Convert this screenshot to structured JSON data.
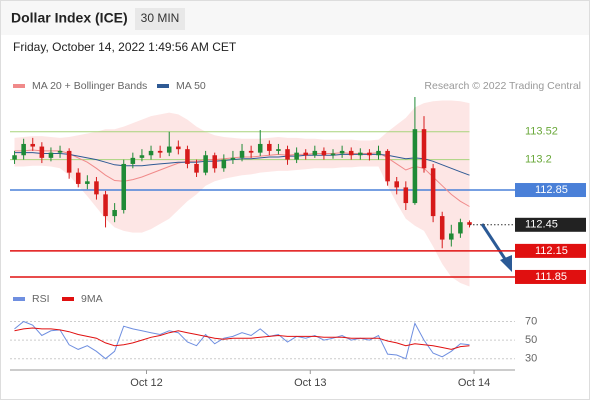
{
  "header": {
    "title": "Dollar Index (ICE)",
    "interval": "30 MIN",
    "timestamp": "Friday, October 14, 2022 1:49:56 AM CET",
    "credit": "Research © 2022 Trading Central"
  },
  "chart_data": [
    {
      "type": "candlestick",
      "up_color": "#1f8a36",
      "down_color": "#d61a1a",
      "open": [
        113.2,
        113.25,
        113.38,
        113.35,
        113.22,
        113.28,
        113.3,
        113.05,
        112.92,
        112.95,
        112.8,
        112.55,
        112.62,
        113.15,
        113.22,
        113.25,
        113.3,
        113.28,
        113.35,
        113.32,
        113.15,
        113.05,
        113.25,
        113.1,
        113.2,
        113.22,
        113.3,
        113.28,
        113.38,
        113.3,
        113.32,
        113.2,
        113.28,
        113.25,
        113.3,
        113.25,
        113.27,
        113.3,
        113.25,
        113.28,
        113.25,
        113.3,
        112.95,
        112.88,
        112.7,
        113.55,
        113.1,
        112.55,
        112.28,
        112.35,
        112.48
      ],
      "high": [
        113.3,
        113.44,
        113.45,
        113.4,
        113.34,
        113.36,
        113.33,
        113.1,
        113.02,
        113.0,
        112.84,
        112.7,
        113.2,
        113.28,
        113.32,
        113.36,
        113.36,
        113.52,
        113.42,
        113.36,
        113.2,
        113.3,
        113.28,
        113.26,
        113.3,
        113.38,
        113.36,
        113.54,
        113.42,
        113.38,
        113.36,
        113.34,
        113.32,
        113.36,
        113.34,
        113.32,
        113.36,
        113.34,
        113.33,
        113.32,
        113.36,
        113.32,
        113.0,
        112.95,
        113.92,
        113.7,
        113.15,
        112.6,
        112.45,
        112.52,
        112.5
      ],
      "low": [
        113.15,
        113.2,
        113.3,
        113.16,
        113.18,
        113.22,
        112.98,
        112.88,
        112.86,
        112.74,
        112.42,
        112.48,
        112.58,
        113.1,
        113.18,
        113.2,
        113.22,
        113.24,
        113.26,
        113.1,
        113.0,
        113.02,
        113.05,
        113.06,
        113.15,
        113.18,
        113.22,
        113.24,
        113.25,
        113.26,
        113.14,
        113.16,
        113.2,
        113.22,
        113.2,
        113.21,
        113.22,
        113.2,
        113.2,
        113.19,
        113.2,
        112.9,
        112.8,
        112.62,
        112.68,
        113.05,
        112.48,
        112.18,
        112.2,
        112.3,
        112.42
      ],
      "close": [
        113.25,
        113.38,
        113.35,
        113.22,
        113.28,
        113.3,
        113.05,
        112.92,
        112.95,
        112.8,
        112.55,
        112.62,
        113.15,
        113.22,
        113.25,
        113.3,
        113.28,
        113.35,
        113.32,
        113.15,
        113.05,
        113.25,
        113.1,
        113.2,
        113.22,
        113.3,
        113.28,
        113.38,
        113.3,
        113.32,
        113.2,
        113.28,
        113.25,
        113.3,
        113.25,
        113.27,
        113.3,
        113.25,
        113.28,
        113.25,
        113.3,
        112.95,
        112.88,
        112.7,
        113.55,
        113.1,
        112.55,
        112.28,
        112.35,
        112.48,
        112.45
      ],
      "overlays": [
        {
          "name": "MA 20 + Bollinger Bands",
          "color": "#f08a8a",
          "band_color": "#fde0de",
          "values": [
            113.3,
            113.3,
            113.31,
            113.3,
            113.3,
            113.3,
            113.27,
            113.22,
            113.17,
            113.1,
            113.02,
            112.96,
            112.95,
            112.97,
            113.0,
            113.04,
            113.08,
            113.12,
            113.16,
            113.18,
            113.18,
            113.2,
            113.2,
            113.21,
            113.22,
            113.23,
            113.23,
            113.24,
            113.25,
            113.26,
            113.25,
            113.26,
            113.26,
            113.27,
            113.27,
            113.27,
            113.28,
            113.27,
            113.27,
            113.27,
            113.28,
            113.22,
            113.15,
            113.08,
            113.12,
            113.1,
            113.0,
            112.9,
            112.8,
            112.72,
            112.66
          ],
          "upper": [
            113.45,
            113.46,
            113.47,
            113.47,
            113.46,
            113.45,
            113.46,
            113.48,
            113.5,
            113.52,
            113.55,
            113.55,
            113.58,
            113.62,
            113.66,
            113.7,
            113.72,
            113.74,
            113.72,
            113.66,
            113.58,
            113.52,
            113.48,
            113.46,
            113.45,
            113.44,
            113.44,
            113.44,
            113.45,
            113.46,
            113.45,
            113.45,
            113.44,
            113.44,
            113.43,
            113.43,
            113.43,
            113.43,
            113.42,
            113.42,
            113.43,
            113.52,
            113.6,
            113.68,
            113.8,
            113.85,
            113.87,
            113.88,
            113.88,
            113.87,
            113.85
          ],
          "lower": [
            113.12,
            113.12,
            113.13,
            113.13,
            113.12,
            113.1,
            113.02,
            112.9,
            112.78,
            112.65,
            112.52,
            112.42,
            112.38,
            112.36,
            112.36,
            112.4,
            112.46,
            112.52,
            112.62,
            112.72,
            112.8,
            112.9,
            112.95,
            112.98,
            113.0,
            113.02,
            113.03,
            113.05,
            113.06,
            113.07,
            113.07,
            113.08,
            113.09,
            113.1,
            113.1,
            113.1,
            113.11,
            113.11,
            113.12,
            113.12,
            113.12,
            112.9,
            112.7,
            112.52,
            112.44,
            112.38,
            112.2,
            112.0,
            111.85,
            111.78,
            111.74
          ]
        },
        {
          "name": "MA 50",
          "color": "#2f5a94",
          "values": [
            113.28,
            113.28,
            113.28,
            113.27,
            113.27,
            113.27,
            113.26,
            113.24,
            113.22,
            113.2,
            113.17,
            113.14,
            113.13,
            113.13,
            113.13,
            113.14,
            113.15,
            113.16,
            113.17,
            113.17,
            113.17,
            113.18,
            113.18,
            113.19,
            113.2,
            113.21,
            113.21,
            113.22,
            113.23,
            113.23,
            113.24,
            113.24,
            113.25,
            113.25,
            113.25,
            113.25,
            113.26,
            113.26,
            113.26,
            113.26,
            113.26,
            113.25,
            113.23,
            113.21,
            113.22,
            113.21,
            113.18,
            113.14,
            113.1,
            113.06,
            113.02
          ]
        }
      ],
      "levels": [
        {
          "value": 113.52,
          "color": "#a8d47c",
          "box": false
        },
        {
          "value": 113.2,
          "color": "#a8d47c",
          "box": false
        },
        {
          "value": 112.85,
          "color": "#4a80d8",
          "box": true
        },
        {
          "value": 112.15,
          "color": "#e01010",
          "box": true
        },
        {
          "value": 111.85,
          "color": "#e01010",
          "box": true
        }
      ],
      "last_price": 112.45,
      "ylim": [
        111.7,
        113.92
      ],
      "xlim": [
        -0.5,
        55
      ],
      "xticks": [
        {
          "value": 14.5,
          "label": "Oct 12"
        },
        {
          "value": 32.5,
          "label": "Oct 13"
        },
        {
          "value": 50.5,
          "label": "Oct 14"
        }
      ]
    },
    {
      "type": "line",
      "series": [
        {
          "name": "RSI",
          "color": "#6f8fe0",
          "values": [
            62,
            70,
            66,
            55,
            60,
            61,
            45,
            40,
            44,
            38,
            30,
            38,
            65,
            62,
            60,
            58,
            56,
            60,
            58,
            48,
            44,
            56,
            46,
            52,
            54,
            58,
            55,
            62,
            54,
            56,
            48,
            54,
            52,
            55,
            50,
            52,
            55,
            50,
            52,
            50,
            55,
            35,
            34,
            30,
            68,
            50,
            36,
            32,
            38,
            46,
            45
          ]
        },
        {
          "name": "9MA",
          "color": "#e01010",
          "values": [
            60,
            62,
            63,
            62,
            62,
            61,
            59,
            56,
            54,
            52,
            47,
            44,
            45,
            47,
            50,
            53,
            55,
            58,
            60,
            58,
            56,
            54,
            52,
            51,
            52,
            52,
            52,
            53,
            54,
            55,
            54,
            54,
            54,
            54,
            53,
            53,
            53,
            52,
            52,
            52,
            52,
            49,
            47,
            44,
            46,
            45,
            44,
            42,
            40,
            43,
            44
          ]
        }
      ],
      "ylim": [
        20,
        77
      ],
      "yticks": [
        30,
        50,
        70
      ],
      "xlim": [
        -0.5,
        55
      ]
    }
  ]
}
